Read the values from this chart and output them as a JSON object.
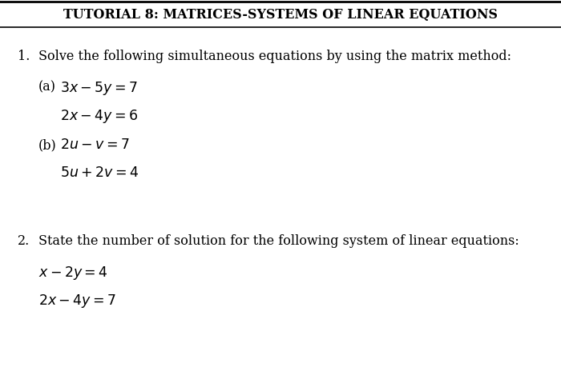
{
  "bg_color": "#ffffff",
  "text_color": "#000000",
  "line_color": "#000000",
  "title_full": "TUTORIAL 8: MATRICES-SYSTEMS OF LINEAR EQUATIONS",
  "title_Tu_italic": "Tu",
  "title_rest": "TORIAL 8: MATRICES-SYSTEMS OF LINEAR EQUATIONS",
  "title_fontsize": 11.5,
  "body_fontsize": 11.5,
  "math_fontsize": 12.5,
  "item1_num": "1.",
  "item1_text": "Solve the following simultaneous equations by using the matrix method:",
  "item1a_label": "(a)",
  "item1a_line1": "$3x - 5y = 7$",
  "item1a_line2": "$2x - 4y = 6$",
  "item1b_label": "(b)",
  "item1b_line1": "$2u - v = 7$",
  "item1b_line2": "$5u + 2v = 4$",
  "item2_num": "2.",
  "item2_text": "State the number of solution for the following system of linear equations:",
  "item2_line1": "$x - 2y = 4$",
  "item2_line2": "$2x - 4y = 7$"
}
